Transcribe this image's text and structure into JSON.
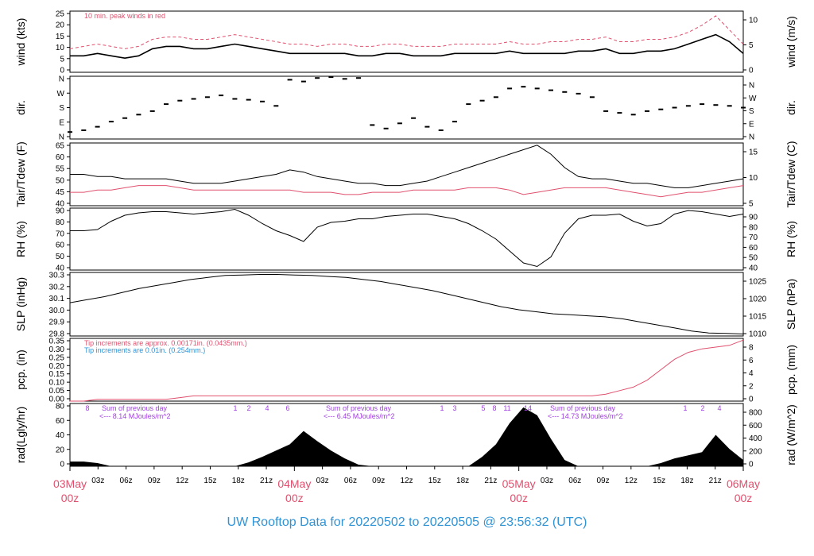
{
  "footer": {
    "title": "UW Rooftop Data for 20220502  to  20220505 @ 23:56:32  (UTC)"
  },
  "colors": {
    "primary": "#000000",
    "secondary": "#e0506e",
    "blue": "#2f93d6",
    "purple": "#a040e0",
    "day": "#e0506e"
  },
  "time_axis": {
    "minor_ticks": [
      "03z",
      "06z",
      "09z",
      "12z",
      "15z",
      "18z",
      "21z",
      "03z",
      "06z",
      "09z",
      "12z",
      "15z",
      "18z",
      "21z",
      "03z",
      "06z",
      "09z",
      "12z",
      "15z",
      "18z",
      "21z"
    ],
    "major_ticks": [
      {
        "day": "03May",
        "hour": "00z"
      },
      {
        "day": "04May",
        "hour": "00z"
      },
      {
        "day": "05May",
        "hour": "00z"
      },
      {
        "day": "06May",
        "hour": "00z"
      }
    ]
  },
  "chart_data": [
    {
      "type": "line",
      "id": "wind",
      "ylabel": "wind (kts)",
      "ylabel_right": "wind (m/s)",
      "ylim": [
        0,
        26
      ],
      "yticks": [
        "0",
        "5",
        "10",
        "15",
        "20",
        "25"
      ],
      "right_ticks": [
        "0",
        "5",
        "10"
      ],
      "annotation": "10 min. peak winds in red",
      "series": [
        {
          "values": [
            7,
            7,
            8,
            7,
            6,
            7,
            10,
            11,
            11,
            10,
            10,
            11,
            12,
            11,
            10,
            9,
            8,
            8,
            8,
            8,
            8,
            7,
            7,
            8,
            8,
            7,
            7,
            7,
            8,
            8,
            8,
            8,
            9,
            8,
            8,
            8,
            8,
            9,
            9,
            10,
            8,
            8,
            9,
            9,
            10,
            12,
            14,
            16,
            13,
            8
          ]
        },
        {
          "values": [
            10,
            11,
            12,
            11,
            10,
            11,
            14,
            15,
            15,
            14,
            14,
            15,
            16,
            15,
            14,
            13,
            12,
            12,
            11,
            12,
            12,
            11,
            11,
            12,
            12,
            11,
            11,
            11,
            12,
            12,
            12,
            12,
            13,
            12,
            12,
            13,
            13,
            14,
            14,
            15,
            13,
            13,
            14,
            14,
            15,
            17,
            20,
            24,
            18,
            12
          ]
        }
      ]
    },
    {
      "type": "scatter",
      "id": "dir",
      "ylabel": "dir.",
      "ylabel_right": "dir.",
      "ylim": [
        0,
        360
      ],
      "yticks": [
        "N",
        "E",
        "S",
        "W",
        "N"
      ],
      "right_ticks": [
        "N",
        "E",
        "S",
        "W",
        "N"
      ],
      "series": [
        {
          "values": [
            40,
            50,
            70,
            100,
            120,
            140,
            160,
            200,
            220,
            230,
            240,
            250,
            230,
            225,
            215,
            190,
            340,
            330,
            350,
            355,
            345,
            350,
            80,
            60,
            90,
            120,
            70,
            50,
            100,
            200,
            220,
            240,
            290,
            300,
            290,
            280,
            270,
            260,
            240,
            160,
            150,
            140,
            160,
            170,
            180,
            190,
            200,
            195,
            190,
            180
          ]
        }
      ]
    },
    {
      "type": "line",
      "id": "temp",
      "ylabel": "Tair/Tdew (F)",
      "ylabel_right": "Tair/Tdew (C)",
      "ylim": [
        39,
        67
      ],
      "yticks": [
        "40",
        "45",
        "50",
        "55",
        "60",
        "65"
      ],
      "right_ticks": [
        "5",
        "10",
        "15"
      ],
      "series": [
        {
          "values": [
            53,
            53,
            52,
            52,
            51,
            51,
            51,
            51,
            50,
            49,
            49,
            49,
            50,
            51,
            52,
            53,
            55,
            54,
            52,
            51,
            50,
            49,
            49,
            48,
            48,
            49,
            50,
            52,
            54,
            56,
            58,
            60,
            62,
            64,
            66,
            62,
            56,
            52,
            51,
            51,
            50,
            49,
            49,
            48,
            47,
            47,
            48,
            49,
            50,
            51
          ]
        },
        {
          "values": [
            45,
            45,
            46,
            46,
            47,
            48,
            48,
            48,
            47,
            46,
            46,
            46,
            46,
            46,
            46,
            46,
            46,
            45,
            45,
            45,
            44,
            44,
            45,
            45,
            45,
            46,
            46,
            46,
            46,
            47,
            47,
            47,
            46,
            44,
            45,
            46,
            47,
            47,
            47,
            47,
            46,
            45,
            44,
            43,
            44,
            45,
            45,
            46,
            47,
            48
          ]
        }
      ]
    },
    {
      "type": "line",
      "id": "rh",
      "ylabel": "RH (%)",
      "ylabel_right": "RH (%)",
      "ylim": [
        39,
        91
      ],
      "yticks": [
        "40",
        "50",
        "60",
        "70",
        "80",
        "90"
      ],
      "right_ticks": [
        "40",
        "50",
        "60",
        "70",
        "80",
        "90"
      ],
      "series": [
        {
          "values": [
            72,
            72,
            73,
            80,
            85,
            87,
            88,
            88,
            87,
            86,
            87,
            88,
            90,
            85,
            78,
            72,
            68,
            63,
            75,
            79,
            80,
            82,
            82,
            84,
            85,
            86,
            86,
            84,
            82,
            78,
            72,
            65,
            55,
            45,
            42,
            50,
            70,
            82,
            85,
            85,
            86,
            80,
            76,
            78,
            86,
            89,
            88,
            86,
            84,
            86
          ]
        }
      ]
    },
    {
      "type": "line",
      "id": "slp",
      "ylabel": "SLP (inHg)",
      "ylabel_right": "SLP (hPa)",
      "ylim": [
        29.73,
        30.36
      ],
      "yticks": [
        "29.8",
        "29.9",
        "30.0",
        "30.1",
        "30.2",
        "30.3"
      ],
      "right_ticks": [
        "1010",
        "1015",
        "1020",
        "1025"
      ],
      "series": [
        {
          "values": [
            30.06,
            30.09,
            30.12,
            30.16,
            30.2,
            30.23,
            30.26,
            30.29,
            30.31,
            30.33,
            30.335,
            30.34,
            30.34,
            30.335,
            30.33,
            30.32,
            30.31,
            30.29,
            30.27,
            30.24,
            30.21,
            30.18,
            30.14,
            30.1,
            30.06,
            30.02,
            29.99,
            29.97,
            29.95,
            29.94,
            29.93,
            29.92,
            29.9,
            29.87,
            29.84,
            29.81,
            29.78,
            29.76,
            29.755,
            29.75
          ]
        }
      ]
    },
    {
      "type": "line",
      "id": "pcp",
      "ylabel": "pcp. (in)",
      "ylabel_right": "pcp. (mm)",
      "ylim": [
        0,
        0.36
      ],
      "yticks": [
        "0.00",
        "0.05",
        "0.10",
        "0.15",
        "0.20",
        "0.25",
        "0.30",
        "0.35"
      ],
      "right_ticks": [
        "0",
        "2",
        "4",
        "6",
        "8"
      ],
      "annotations": [
        {
          "text": "Tip increments are approx. 0.00171in. (0.0435mm.)",
          "color": "#e0506e"
        },
        {
          "text": "Tip increments are 0.01in. (0.254mm.)",
          "color": "#2f93d6"
        }
      ],
      "series": [
        {
          "values": [
            0.0,
            0.0,
            0.01,
            0.01,
            0.01,
            0.01,
            0.01,
            0.01,
            0.02,
            0.03,
            0.03,
            0.03,
            0.03,
            0.03,
            0.03,
            0.03,
            0.03,
            0.03,
            0.03,
            0.03,
            0.03,
            0.03,
            0.03,
            0.03,
            0.03,
            0.03,
            0.03,
            0.03,
            0.03,
            0.03,
            0.03,
            0.03,
            0.03,
            0.03,
            0.03,
            0.03,
            0.03,
            0.03,
            0.03,
            0.04,
            0.06,
            0.08,
            0.12,
            0.18,
            0.24,
            0.28,
            0.3,
            0.31,
            0.32,
            0.35
          ]
        }
      ]
    },
    {
      "type": "area",
      "id": "rad",
      "ylabel": "rad(Lgly/hr)",
      "ylabel_right": "rad (W/m^2)",
      "ylim": [
        0,
        80
      ],
      "yticks": [
        "0",
        "20",
        "40",
        "60",
        "80"
      ],
      "right_ticks": [
        "0",
        "200",
        "400",
        "600",
        "800"
      ],
      "top_ticks": [
        "8",
        "1",
        "2",
        "4",
        "6",
        "1",
        "3",
        "5",
        "8",
        "11",
        "14",
        "1",
        "2",
        "4"
      ],
      "summaries": [
        {
          "title": "Sum of previous day",
          "value": "<--- 8.14 MJoules/m^2"
        },
        {
          "title": "Sum of previous day",
          "value": "<--- 6.45 MJoules/m^2"
        },
        {
          "title": "Sum of previous day",
          "value": "<--- 14.73 MJoules/m^2"
        }
      ],
      "series": [
        {
          "values": [
            6,
            6,
            4,
            0,
            0,
            0,
            0,
            0,
            0,
            0,
            0,
            0,
            0,
            5,
            12,
            20,
            28,
            45,
            32,
            20,
            10,
            2,
            0,
            0,
            0,
            0,
            0,
            0,
            0,
            0,
            12,
            28,
            55,
            75,
            65,
            35,
            8,
            0,
            0,
            0,
            0,
            0,
            0,
            4,
            10,
            14,
            18,
            40,
            22,
            8
          ]
        }
      ]
    }
  ]
}
